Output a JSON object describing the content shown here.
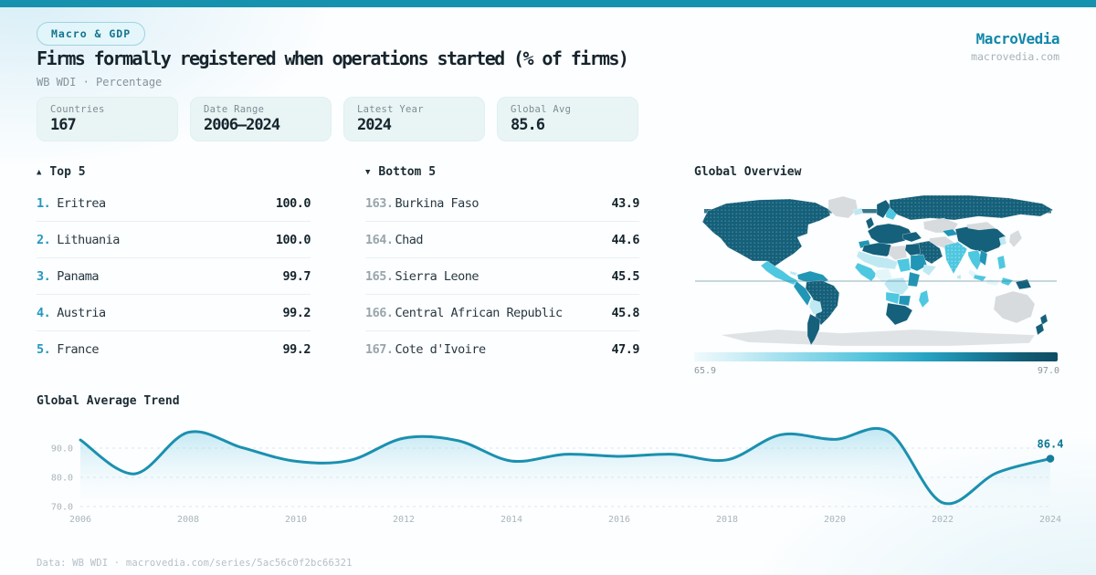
{
  "brand": {
    "name": "MacroVedia",
    "site": "macrovedia.com"
  },
  "header": {
    "badge": "Macro & GDP",
    "title": "Firms formally registered when operations started (% of firms)",
    "subtitle": "WB WDI · Percentage"
  },
  "stats": [
    {
      "label": "Countries",
      "value": "167"
    },
    {
      "label": "Date Range",
      "value": "2006—2024"
    },
    {
      "label": "Latest Year",
      "value": "2024"
    },
    {
      "label": "Global Avg",
      "value": "85.6"
    }
  ],
  "lists": {
    "top": {
      "arrow": "▲",
      "header": "Top 5",
      "rows": [
        {
          "rank": "1.",
          "name": "Eritrea",
          "value": "100.0"
        },
        {
          "rank": "2.",
          "name": "Lithuania",
          "value": "100.0"
        },
        {
          "rank": "3.",
          "name": "Panama",
          "value": "99.7"
        },
        {
          "rank": "4.",
          "name": "Austria",
          "value": "99.2"
        },
        {
          "rank": "5.",
          "name": "France",
          "value": "99.2"
        }
      ]
    },
    "bottom": {
      "arrow": "▼",
      "header": "Bottom 5",
      "rows": [
        {
          "rank": "163.",
          "name": "Burkina Faso",
          "value": "43.9"
        },
        {
          "rank": "164.",
          "name": "Chad",
          "value": "44.6"
        },
        {
          "rank": "165.",
          "name": "Sierra Leone",
          "value": "45.5"
        },
        {
          "rank": "166.",
          "name": "Central African Republic",
          "value": "45.8"
        },
        {
          "rank": "167.",
          "name": "Cote d'Ivoire",
          "value": "47.9"
        }
      ]
    }
  },
  "map": {
    "title": "Global Overview",
    "scale_min": "65.9",
    "scale_max": "97.0",
    "palette": {
      "highest": "#15607a",
      "high": "#2196b6",
      "medium": "#4ec7e0",
      "low": "#bfe9f2",
      "lowest": "#e4f6fa",
      "no_data": "#d7dbde"
    }
  },
  "chart_data": {
    "type": "line",
    "title": "Global Average Trend",
    "x": [
      2006,
      2007,
      2008,
      2009,
      2010,
      2011,
      2012,
      2013,
      2014,
      2015,
      2016,
      2017,
      2018,
      2019,
      2020,
      2021,
      2022,
      2023,
      2024
    ],
    "values": [
      92.8,
      81.2,
      95.4,
      90.2,
      85.5,
      85.8,
      93.4,
      92.6,
      85.6,
      87.9,
      87.2,
      87.9,
      86.0,
      94.6,
      93.0,
      95.6,
      71.3,
      81.5,
      86.4
    ],
    "x_ticks": [
      2006,
      2008,
      2010,
      2012,
      2014,
      2016,
      2018,
      2020,
      2022,
      2024
    ],
    "y_ticks": [
      90.0,
      80.0,
      70.0
    ],
    "ylim": [
      68,
      98
    ],
    "grid": true,
    "legend": "none",
    "line_color": "#1b90af",
    "end_label": "86.4"
  },
  "footer": {
    "text": "Data: WB WDI · macrovedia.com/series/5ac56c0f2bc66321"
  }
}
